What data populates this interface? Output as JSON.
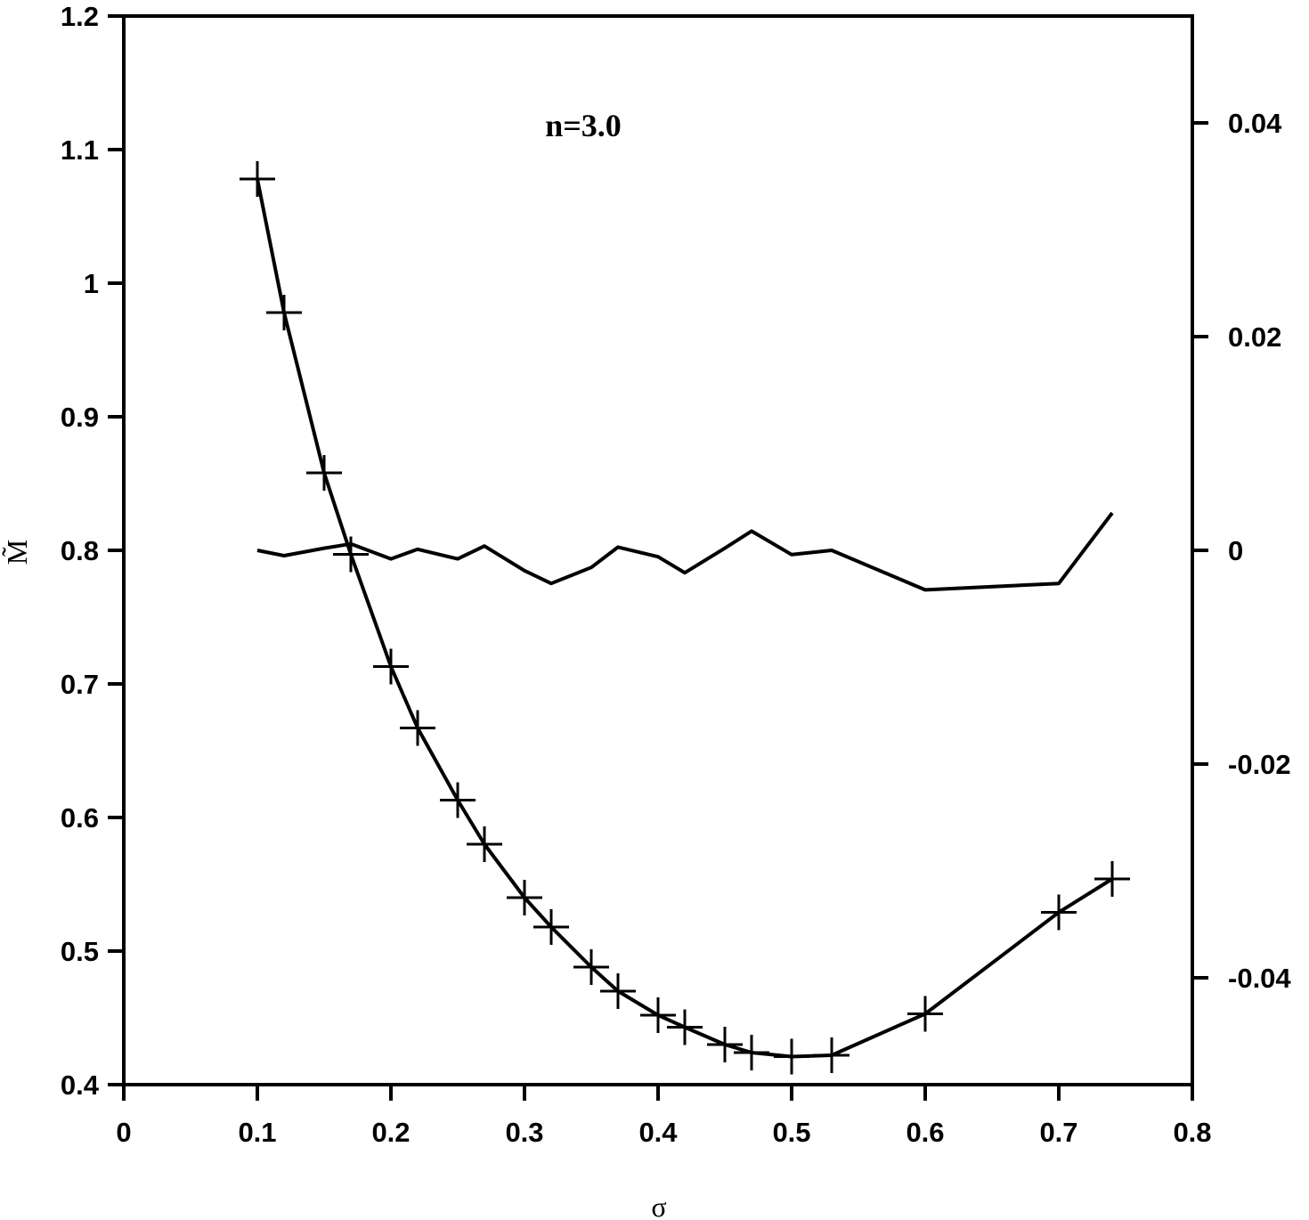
{
  "chart_data": {
    "type": "line",
    "annotation": "n=3.0",
    "xlabel": "σ",
    "ylabel": "M̃",
    "y2label": "",
    "xlim": [
      0,
      0.8
    ],
    "ylim": [
      0.4,
      1.2
    ],
    "y2lim": [
      -0.05,
      0.05
    ],
    "x_ticks": [
      "0",
      "0.1",
      "0.2",
      "0.3",
      "0.4",
      "0.5",
      "0.6",
      "0.7",
      "0.8"
    ],
    "y_ticks": [
      "0.4",
      "0.5",
      "0.6",
      "0.7",
      "0.8",
      "0.9",
      "1",
      "1.1",
      "1.2"
    ],
    "y2_ticks": [
      "-0.04",
      "-0.02",
      "0",
      "0.02",
      "0.04"
    ],
    "grid": false,
    "series": [
      {
        "axis": "left",
        "style": "line-with-plus-markers",
        "x": [
          0.1,
          0.12,
          0.15,
          0.17,
          0.2,
          0.22,
          0.25,
          0.27,
          0.3,
          0.32,
          0.35,
          0.37,
          0.4,
          0.42,
          0.45,
          0.47,
          0.5,
          0.53,
          0.6,
          0.7,
          0.74
        ],
        "y": [
          1.078,
          0.978,
          0.858,
          0.797,
          0.713,
          0.667,
          0.613,
          0.58,
          0.54,
          0.518,
          0.488,
          0.47,
          0.452,
          0.443,
          0.43,
          0.424,
          0.421,
          0.422,
          0.453,
          0.529,
          0.554
        ]
      },
      {
        "axis": "right",
        "style": "line",
        "x": [
          0.1,
          0.12,
          0.15,
          0.17,
          0.2,
          0.22,
          0.25,
          0.27,
          0.3,
          0.32,
          0.35,
          0.37,
          0.4,
          0.42,
          0.45,
          0.47,
          0.5,
          0.53,
          0.6,
          0.7,
          0.74
        ],
        "y": [
          0.0,
          -0.0005,
          0.0002,
          0.0006,
          -0.0008,
          0.0001,
          -0.0008,
          0.0004,
          -0.0019,
          -0.0031,
          -0.0016,
          0.0003,
          -0.0006,
          -0.0021,
          0.0002,
          0.0018,
          -0.0004,
          0.0,
          -0.0037,
          -0.0031,
          0.0035
        ]
      }
    ]
  }
}
